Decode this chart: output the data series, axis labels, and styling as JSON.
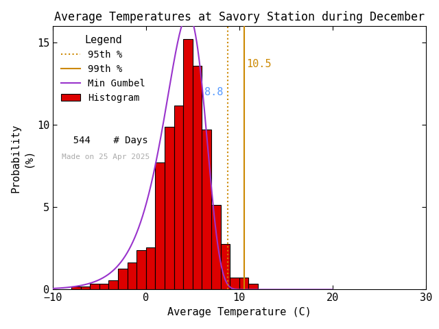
{
  "title": "Average Temperatures at Savory Station during December",
  "xlabel": "Average Temperature (C)",
  "ylabel": "Probability\n(%)",
  "xlim": [
    -10,
    30
  ],
  "ylim": [
    0,
    16
  ],
  "yticks": [
    0,
    5,
    10,
    15
  ],
  "xticks": [
    -10,
    0,
    10,
    20,
    30
  ],
  "bar_edges": [
    -9,
    -8,
    -7,
    -6,
    -5,
    -4,
    -3,
    -2,
    -1,
    0,
    1,
    2,
    3,
    4,
    5,
    6,
    7,
    8,
    9,
    10,
    11
  ],
  "bar_heights": [
    0.0,
    0.18,
    0.18,
    0.37,
    0.37,
    0.55,
    1.28,
    1.65,
    2.39,
    2.57,
    7.71,
    9.9,
    11.19,
    15.24,
    13.58,
    9.72,
    5.14,
    2.76,
    0.74,
    0.74,
    0.37
  ],
  "bar_color": "#dd0000",
  "bar_edgecolor": "#000000",
  "gumbel_mu": 4.5,
  "gumbel_beta": 2.2,
  "percentile_95": 8.8,
  "percentile_99": 10.5,
  "n_days": 544,
  "legend_title": "Legend",
  "made_on": "Made on 25 Apr 2025",
  "p95_color": "#cc8800",
  "p95_dotted_color": "#cc8800",
  "p99_color": "#cc8800",
  "p95_label_color": "#5599ff",
  "p99_label_color": "#cc8800",
  "gumbel_color": "#9933cc",
  "hist_color": "#dd0000",
  "bg_color": "#ffffff",
  "title_fontsize": 12,
  "axis_fontsize": 11,
  "legend_fontsize": 10
}
